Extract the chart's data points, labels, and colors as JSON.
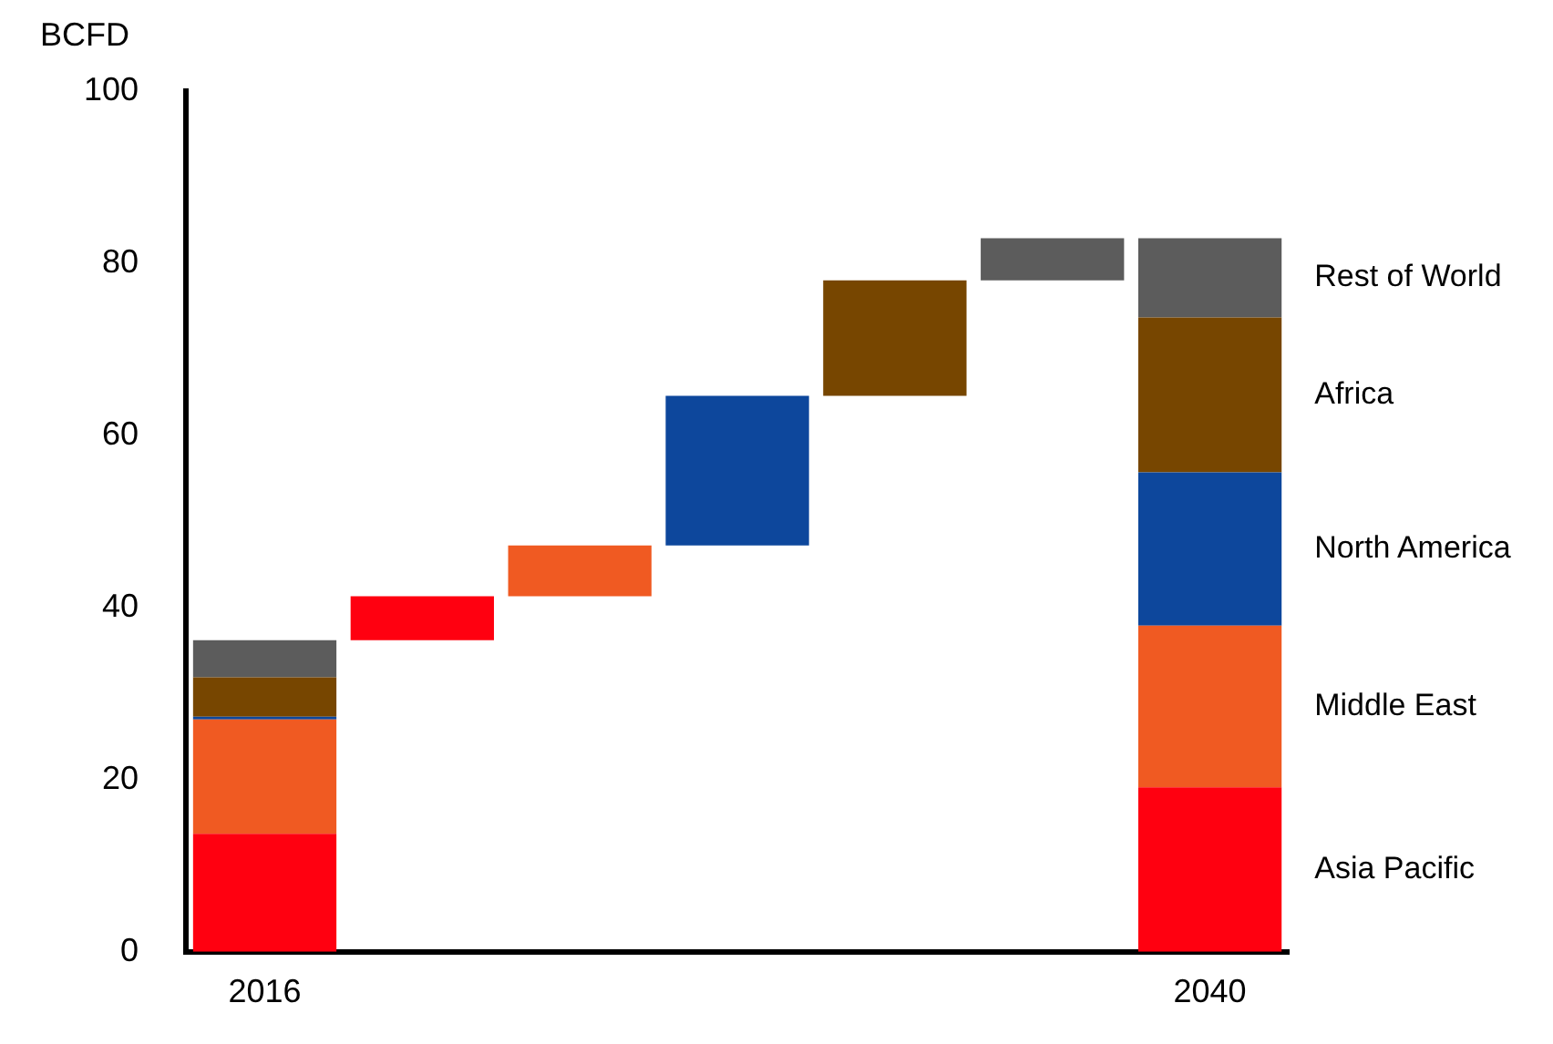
{
  "chart_data": {
    "type": "bar",
    "ylabel": "BCFD",
    "stacked": true,
    "categories": [
      "2016",
      null,
      null,
      null,
      null,
      null,
      "2040"
    ],
    "ylim": [
      0,
      100
    ],
    "yticks": [
      0,
      20,
      40,
      60,
      80,
      100
    ],
    "grid": false,
    "legend": false,
    "series": [
      {
        "name": "Asia Pacific",
        "color": "#ff0010",
        "values": [
          13.7,
          5.1,
          null,
          null,
          null,
          null,
          19.1
        ],
        "base": [
          null,
          36.2,
          null,
          null,
          null,
          null,
          null
        ]
      },
      {
        "name": "Middle East",
        "color": "#f05a22",
        "values": [
          13.3,
          null,
          5.9,
          null,
          null,
          null,
          18.8
        ],
        "base": [
          null,
          null,
          41.3,
          null,
          null,
          null,
          null
        ]
      },
      {
        "name": "North America",
        "color": "#0d479c",
        "values": [
          0.3,
          null,
          null,
          17.4,
          null,
          null,
          17.8
        ],
        "base": [
          null,
          null,
          null,
          47.2,
          null,
          null,
          null
        ]
      },
      {
        "name": "Africa",
        "color": "#774600",
        "values": [
          4.6,
          null,
          null,
          null,
          13.4,
          null,
          18.0
        ],
        "base": [
          null,
          null,
          null,
          null,
          64.6,
          null,
          null
        ]
      },
      {
        "name": "Rest of World",
        "color": "#5c5c5c",
        "values": [
          4.3,
          null,
          null,
          null,
          null,
          4.9,
          9.2
        ],
        "base": [
          null,
          null,
          null,
          null,
          null,
          78.0,
          null
        ]
      }
    ]
  }
}
